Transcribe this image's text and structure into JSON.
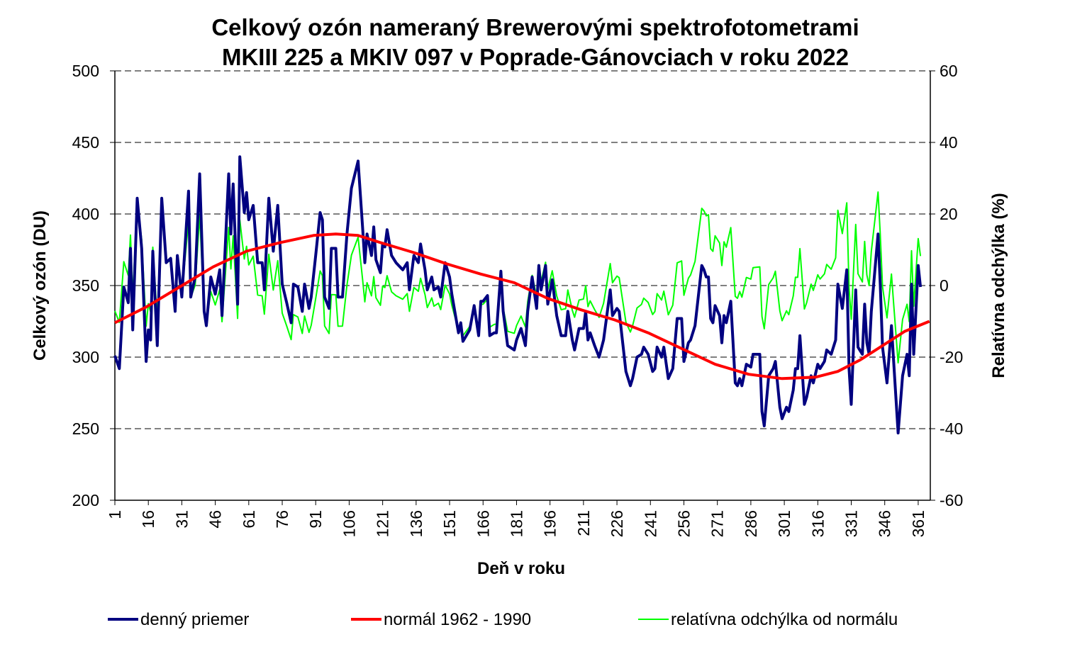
{
  "chart_data": {
    "type": "line",
    "title": [
      "Celkový ozón nameraný  Brewerovými spektrofotometrami",
      "MKIII 225 a MKIV 097  v Poprade-Gánovciach v roku 2022"
    ],
    "xlabel": "Deň v roku",
    "ylabel": "Celkový ozón (DU)",
    "y2label": "Relatívna odchýlka  (%)",
    "xlim": [
      1,
      366
    ],
    "ylim": [
      200,
      500
    ],
    "y2lim": [
      -60,
      60
    ],
    "x_ticks": [
      1,
      16,
      31,
      46,
      61,
      76,
      91,
      106,
      121,
      136,
      151,
      166,
      181,
      196,
      211,
      226,
      241,
      256,
      271,
      286,
      301,
      316,
      331,
      346,
      361
    ],
    "y_ticks": [
      200,
      250,
      300,
      350,
      400,
      450,
      500
    ],
    "y2_ticks": [
      -60,
      -40,
      -20,
      0,
      20,
      40,
      60
    ],
    "grid": "horizontal dashed",
    "legend_position": "bottom",
    "colors": {
      "daily": "#000080",
      "normal": "#ff0000",
      "relative": "#00ff00"
    },
    "series": [
      {
        "name": "denný priemer",
        "axis": "left",
        "points": [
          [
            1,
            301
          ],
          [
            3,
            292
          ],
          [
            5,
            349
          ],
          [
            7,
            338
          ],
          [
            8,
            376
          ],
          [
            9,
            319
          ],
          [
            11,
            411
          ],
          [
            13,
            376
          ],
          [
            15,
            297
          ],
          [
            16,
            319
          ],
          [
            17,
            312
          ],
          [
            18,
            374
          ],
          [
            20,
            308
          ],
          [
            22,
            411
          ],
          [
            24,
            366
          ],
          [
            26,
            369
          ],
          [
            28,
            332
          ],
          [
            29,
            371
          ],
          [
            31,
            342
          ],
          [
            34,
            416
          ],
          [
            35,
            342
          ],
          [
            37,
            356
          ],
          [
            39,
            428
          ],
          [
            41,
            332
          ],
          [
            42,
            322
          ],
          [
            44,
            356
          ],
          [
            46,
            344
          ],
          [
            48,
            361
          ],
          [
            49,
            329
          ],
          [
            52,
            428
          ],
          [
            53,
            386
          ],
          [
            54,
            421
          ],
          [
            56,
            337
          ],
          [
            57,
            440
          ],
          [
            59,
            401
          ],
          [
            60,
            415
          ],
          [
            61,
            396
          ],
          [
            63,
            406
          ],
          [
            65,
            366
          ],
          [
            67,
            366
          ],
          [
            68,
            347
          ],
          [
            70,
            411
          ],
          [
            72,
            374
          ],
          [
            74,
            406
          ],
          [
            76,
            351
          ],
          [
            78,
            338
          ],
          [
            80,
            324
          ],
          [
            81,
            351
          ],
          [
            83,
            349
          ],
          [
            85,
            332
          ],
          [
            86,
            351
          ],
          [
            88,
            334
          ],
          [
            89,
            342
          ],
          [
            91,
            371
          ],
          [
            93,
            401
          ],
          [
            94,
            396
          ],
          [
            95,
            342
          ],
          [
            97,
            334
          ],
          [
            98,
            376
          ],
          [
            100,
            376
          ],
          [
            101,
            342
          ],
          [
            103,
            342
          ],
          [
            105,
            386
          ],
          [
            107,
            418
          ],
          [
            110,
            437
          ],
          [
            112,
            391
          ],
          [
            113,
            366
          ],
          [
            114,
            386
          ],
          [
            116,
            371
          ],
          [
            117,
            391
          ],
          [
            118,
            368
          ],
          [
            120,
            359
          ],
          [
            121,
            379
          ],
          [
            122,
            377
          ],
          [
            123,
            389
          ],
          [
            125,
            371
          ],
          [
            127,
            366
          ],
          [
            130,
            361
          ],
          [
            132,
            366
          ],
          [
            133,
            347
          ],
          [
            135,
            371
          ],
          [
            137,
            366
          ],
          [
            138,
            379
          ],
          [
            140,
            361
          ],
          [
            141,
            347
          ],
          [
            143,
            356
          ],
          [
            144,
            347
          ],
          [
            146,
            349
          ],
          [
            147,
            342
          ],
          [
            149,
            366
          ],
          [
            151,
            356
          ],
          [
            152,
            344
          ],
          [
            155,
            317
          ],
          [
            156,
            324
          ],
          [
            157,
            311
          ],
          [
            160,
            319
          ],
          [
            162,
            336
          ],
          [
            164,
            315
          ],
          [
            165,
            339
          ],
          [
            166,
            339
          ],
          [
            168,
            343
          ],
          [
            169,
            315
          ],
          [
            171,
            317
          ],
          [
            172,
            317
          ],
          [
            174,
            360
          ],
          [
            175,
            332
          ],
          [
            177,
            308
          ],
          [
            180,
            305
          ],
          [
            181,
            312
          ],
          [
            183,
            320
          ],
          [
            185,
            308
          ],
          [
            186,
            332
          ],
          [
            188,
            356
          ],
          [
            190,
            334
          ],
          [
            191,
            364
          ],
          [
            192,
            347
          ],
          [
            194,
            364
          ],
          [
            195,
            337
          ],
          [
            197,
            354
          ],
          [
            199,
            329
          ],
          [
            201,
            315
          ],
          [
            203,
            315
          ],
          [
            204,
            332
          ],
          [
            206,
            312
          ],
          [
            207,
            305
          ],
          [
            209,
            320
          ],
          [
            211,
            320
          ],
          [
            212,
            332
          ],
          [
            213,
            312
          ],
          [
            214,
            317
          ],
          [
            216,
            308
          ],
          [
            218,
            300
          ],
          [
            220,
            312
          ],
          [
            223,
            347
          ],
          [
            224,
            329
          ],
          [
            226,
            334
          ],
          [
            227,
            332
          ],
          [
            230,
            290
          ],
          [
            232,
            280
          ],
          [
            233,
            285
          ],
          [
            235,
            300
          ],
          [
            237,
            302
          ],
          [
            238,
            307
          ],
          [
            240,
            302
          ],
          [
            242,
            290
          ],
          [
            243,
            292
          ],
          [
            244,
            307
          ],
          [
            246,
            300
          ],
          [
            247,
            307
          ],
          [
            249,
            285
          ],
          [
            251,
            292
          ],
          [
            253,
            327
          ],
          [
            255,
            327
          ],
          [
            256,
            297
          ],
          [
            258,
            310
          ],
          [
            259,
            312
          ],
          [
            261,
            322
          ],
          [
            264,
            364
          ],
          [
            265,
            361
          ],
          [
            266,
            356
          ],
          [
            267,
            356
          ],
          [
            268,
            327
          ],
          [
            269,
            324
          ],
          [
            270,
            336
          ],
          [
            272,
            329
          ],
          [
            273,
            310
          ],
          [
            274,
            329
          ],
          [
            275,
            324
          ],
          [
            277,
            339
          ],
          [
            279,
            282
          ],
          [
            280,
            280
          ],
          [
            281,
            285
          ],
          [
            282,
            280
          ],
          [
            284,
            295
          ],
          [
            286,
            293
          ],
          [
            287,
            302
          ],
          [
            290,
            302
          ],
          [
            291,
            262
          ],
          [
            292,
            252
          ],
          [
            294,
            287
          ],
          [
            296,
            292
          ],
          [
            297,
            297
          ],
          [
            299,
            265
          ],
          [
            300,
            257
          ],
          [
            302,
            265
          ],
          [
            303,
            262
          ],
          [
            305,
            277
          ],
          [
            306,
            292
          ],
          [
            307,
            292
          ],
          [
            308,
            315
          ],
          [
            310,
            267
          ],
          [
            311,
            272
          ],
          [
            313,
            287
          ],
          [
            314,
            282
          ],
          [
            316,
            295
          ],
          [
            317,
            292
          ],
          [
            319,
            297
          ],
          [
            320,
            305
          ],
          [
            322,
            302
          ],
          [
            324,
            312
          ],
          [
            325,
            351
          ],
          [
            327,
            334
          ],
          [
            329,
            361
          ],
          [
            330,
            292
          ],
          [
            331,
            267
          ],
          [
            333,
            347
          ],
          [
            334,
            307
          ],
          [
            336,
            302
          ],
          [
            337,
            337
          ],
          [
            338,
            310
          ],
          [
            339,
            302
          ],
          [
            340,
            332
          ],
          [
            343,
            386
          ],
          [
            344,
            351
          ],
          [
            345,
            307
          ],
          [
            347,
            282
          ],
          [
            349,
            322
          ],
          [
            350,
            297
          ],
          [
            352,
            247
          ],
          [
            354,
            287
          ],
          [
            356,
            302
          ],
          [
            357,
            287
          ],
          [
            358,
            351
          ],
          [
            359,
            302
          ],
          [
            361,
            364
          ],
          [
            362,
            349
          ]
        ]
      },
      {
        "name": "normál 1962 - 1990",
        "axis": "left",
        "points": [
          [
            1,
            324
          ],
          [
            15,
            335
          ],
          [
            30,
            349
          ],
          [
            45,
            363
          ],
          [
            60,
            374
          ],
          [
            75,
            380
          ],
          [
            90,
            385
          ],
          [
            100,
            386
          ],
          [
            110,
            385
          ],
          [
            120,
            380
          ],
          [
            135,
            373
          ],
          [
            150,
            365
          ],
          [
            165,
            358
          ],
          [
            180,
            352
          ],
          [
            195,
            341
          ],
          [
            210,
            333
          ],
          [
            225,
            326
          ],
          [
            240,
            317
          ],
          [
            255,
            306
          ],
          [
            270,
            295
          ],
          [
            285,
            288
          ],
          [
            300,
            285
          ],
          [
            315,
            286
          ],
          [
            325,
            290
          ],
          [
            335,
            298
          ],
          [
            345,
            308
          ],
          [
            355,
            318
          ],
          [
            366,
            325
          ]
        ]
      },
      {
        "name": "relatívna odchýlka od normálu",
        "axis": "right",
        "derived": "100*(denný priemer - normál)/normál"
      }
    ]
  }
}
